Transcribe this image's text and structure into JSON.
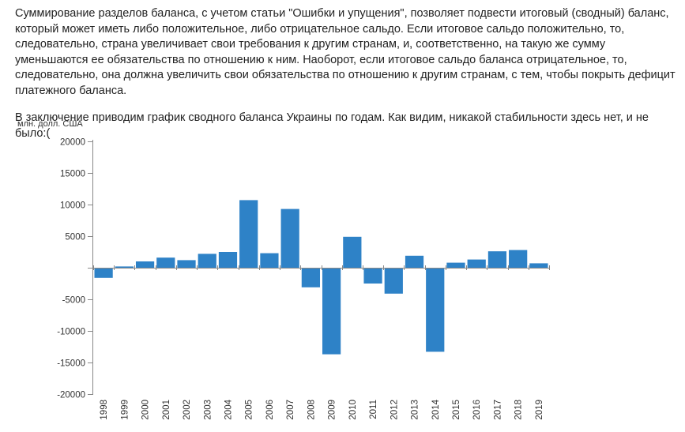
{
  "article": {
    "paragraph_1": "Суммирование разделов баланса, с учетом статьи \"Ошибки и упущения\", позволяет подвести итоговый (сводный) баланс, который может иметь либо положительное, либо отрицательное сальдо. Если итоговое сальдо положительно, то, следовательно, страна увеличивает свои требования к другим странам, и, соответственно, на такую же сумму уменьшаются ее обязательства по отношению к ним. Наоборот, если итоговое сальдо баланса отрицательное, то, следовательно, она должна увеличить свои обязательства по отношению к другим странам, с тем, чтобы покрыть дефицит платежного баланса.",
    "paragraph_2": "В заключение приводим график сводного баланса Украины по годам. Как видим, никакой стабильности здесь нет, и не было:("
  },
  "chart_data": {
    "type": "bar",
    "ylabel": "млн. долл. США",
    "ylim": [
      -20000,
      20000
    ],
    "yticks": [
      20000,
      15000,
      10000,
      5000,
      0,
      -5000,
      -10000,
      -15000,
      -20000
    ],
    "ytick_labels": [
      "20000",
      "15000",
      "10000",
      "5000",
      "",
      "-5000",
      "-10000",
      "-15000",
      "-20000"
    ],
    "categories": [
      "1998",
      "1999",
      "2000",
      "2001",
      "2002",
      "2003",
      "2004",
      "2005",
      "2006",
      "2007",
      "2008",
      "2009",
      "2010",
      "2011",
      "2012",
      "2013",
      "2014",
      "2015",
      "2016",
      "2017",
      "2018",
      "2019"
    ],
    "values": [
      -1600,
      200,
      1000,
      1600,
      1200,
      2200,
      2500,
      10700,
      2300,
      9300,
      -3100,
      -13700,
      4900,
      -2500,
      -4100,
      1900,
      -13300,
      800,
      1300,
      2600,
      2800,
      700
    ],
    "grid": false,
    "bar_color": "#2e82c7",
    "axis_color": "#888888"
  }
}
